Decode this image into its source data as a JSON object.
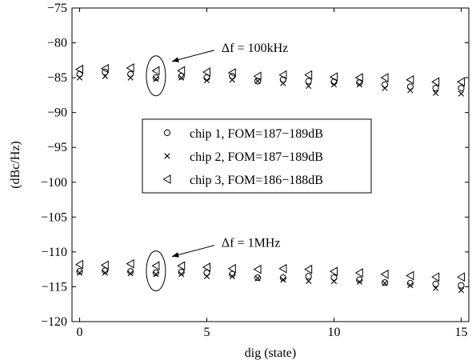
{
  "chart_data": {
    "type": "scatter",
    "xlabel": "dig (state)",
    "ylabel": "(dBc/Hz)",
    "xlim": [
      -0.3,
      15.3
    ],
    "ylim": [
      -120,
      -75
    ],
    "xticks": [
      0,
      5,
      10,
      15
    ],
    "yticks": [
      -120,
      -115,
      -110,
      -105,
      -100,
      -95,
      -90,
      -85,
      -80,
      -75
    ],
    "grid": false,
    "legend_position": "center",
    "x": [
      0,
      1,
      2,
      3,
      4,
      5,
      6,
      7,
      8,
      9,
      10,
      11,
      12,
      13,
      14,
      15
    ],
    "series": [
      {
        "name": "chip 1, FOM=187−189dB",
        "marker": "circle",
        "y_100k": [
          -84.5,
          -84.2,
          -84.5,
          -85.0,
          -84.8,
          -85.0,
          -84.8,
          -85.5,
          -85.3,
          -85.5,
          -85.6,
          -85.7,
          -86.0,
          -86.3,
          -86.5,
          -86.5
        ],
        "y_1M": [
          -112.8,
          -112.7,
          -112.8,
          -113.0,
          -112.9,
          -113.0,
          -113.2,
          -113.7,
          -113.7,
          -113.5,
          -113.7,
          -114.0,
          -114.4,
          -114.5,
          -114.6,
          -114.8
        ]
      },
      {
        "name": "chip 2, FOM=187−189dB",
        "marker": "x",
        "y_100k": [
          -85.0,
          -84.8,
          -85.0,
          -85.2,
          -85.0,
          -85.4,
          -85.3,
          -85.5,
          -85.8,
          -86.2,
          -86.0,
          -86.0,
          -86.5,
          -86.8,
          -87.2,
          -87.3
        ],
        "y_1M": [
          -113.0,
          -113.0,
          -113.1,
          -113.2,
          -113.2,
          -113.5,
          -113.5,
          -113.8,
          -114.0,
          -114.2,
          -114.2,
          -114.3,
          -114.5,
          -114.8,
          -115.2,
          -115.5
        ]
      },
      {
        "name": "chip 3, FOM=186−188dB",
        "marker": "triangle-left",
        "y_100k": [
          -83.8,
          -83.7,
          -83.6,
          -84.0,
          -84.0,
          -84.2,
          -84.3,
          -84.8,
          -84.6,
          -84.6,
          -84.9,
          -85.0,
          -85.0,
          -85.3,
          -85.6,
          -85.6
        ],
        "y_1M": [
          -111.8,
          -111.9,
          -111.7,
          -112.0,
          -112.0,
          -112.2,
          -112.4,
          -112.5,
          -112.4,
          -112.5,
          -112.8,
          -113.0,
          -113.2,
          -113.4,
          -113.6,
          -113.6
        ]
      }
    ],
    "annotations": [
      {
        "text": "Δf = 100kHz",
        "target_x": 3,
        "target_y": -84.5
      },
      {
        "text": "Δf = 1MHz",
        "target_x": 3,
        "target_y": -112.5
      }
    ]
  }
}
